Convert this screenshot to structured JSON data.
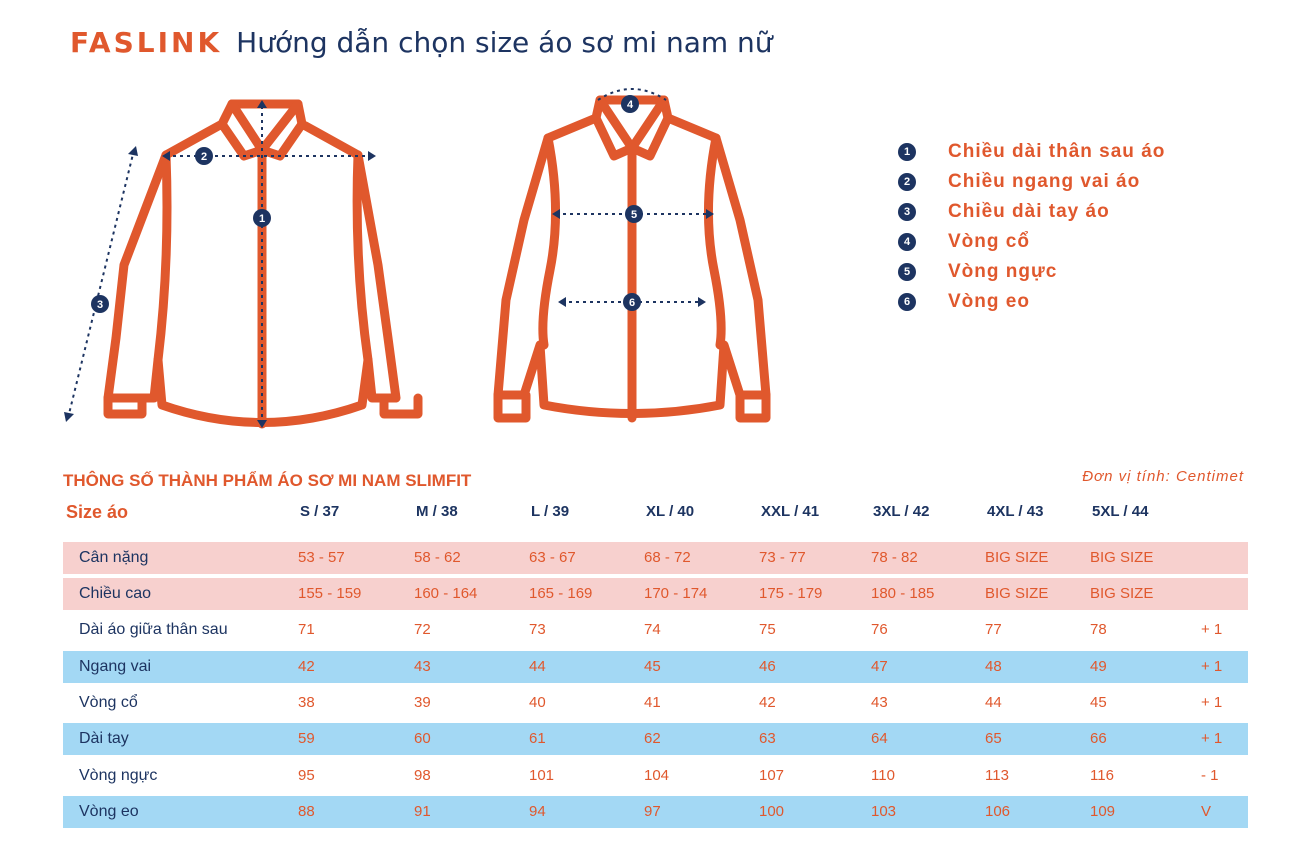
{
  "header": {
    "brand": "FASLINK",
    "title": "Hướng dẫn chọn size áo sơ mi nam nữ"
  },
  "colors": {
    "accent": "#e0582d",
    "navy": "#1d3461",
    "pink_row": "#f7d0ce",
    "blue_row": "#a3d8f4"
  },
  "diagram_markers": [
    "1",
    "2",
    "3",
    "4",
    "5",
    "6"
  ],
  "legend": [
    {
      "num": "1",
      "label": "Chiều dài thân sau áo"
    },
    {
      "num": "2",
      "label": "Chiều ngang vai áo"
    },
    {
      "num": "3",
      "label": "Chiều dài tay áo"
    },
    {
      "num": "4",
      "label": "Vòng cổ"
    },
    {
      "num": "5",
      "label": "Vòng ngực"
    },
    {
      "num": "6",
      "label": "Vòng eo"
    }
  ],
  "table": {
    "title": "THÔNG SỐ THÀNH PHẨM ÁO SƠ MI NAM SLIMFIT",
    "unit": "Đơn vị tính: Centimet",
    "header_label": "Size áo",
    "sizes": [
      "S / 37",
      "M / 38",
      "L / 39",
      "XL / 40",
      "XXL / 41",
      "3XL / 42",
      "4XL / 43",
      "5XL / 44"
    ],
    "rows": [
      {
        "label": "Cân nặng",
        "style": "pink",
        "values": [
          "53 - 57",
          "58 - 62",
          "63 - 67",
          "68 - 72",
          "73 - 77",
          "78 - 82",
          "BIG SIZE",
          "BIG SIZE"
        ],
        "tolerance": ""
      },
      {
        "label": "Chiều cao",
        "style": "pink",
        "values": [
          "155 - 159",
          "160 - 164",
          "165 - 169",
          "170 - 174",
          "175 - 179",
          "180 - 185",
          "BIG SIZE",
          "BIG SIZE"
        ],
        "tolerance": ""
      },
      {
        "label": "Dài áo giữa thân sau",
        "style": "white",
        "values": [
          "71",
          "72",
          "73",
          "74",
          "75",
          "76",
          "77",
          "78"
        ],
        "tolerance": "+ 1"
      },
      {
        "label": "Ngang vai",
        "style": "blue",
        "values": [
          "42",
          "43",
          "44",
          "45",
          "46",
          "47",
          "48",
          "49"
        ],
        "tolerance": "+ 1"
      },
      {
        "label": "Vòng cổ",
        "style": "white",
        "values": [
          "38",
          "39",
          "40",
          "41",
          "42",
          "43",
          "44",
          "45"
        ],
        "tolerance": "+ 1"
      },
      {
        "label": "Dài tay",
        "style": "blue",
        "values": [
          "59",
          "60",
          "61",
          "62",
          "63",
          "64",
          "65",
          "66"
        ],
        "tolerance": "+ 1"
      },
      {
        "label": "Vòng ngực",
        "style": "white",
        "values": [
          "95",
          "98",
          "101",
          "104",
          "107",
          "110",
          "113",
          "116"
        ],
        "tolerance": "- 1"
      },
      {
        "label": "Vòng eo",
        "style": "blue",
        "values": [
          "88",
          "91",
          "94",
          "97",
          "100",
          "103",
          "106",
          "109"
        ],
        "tolerance": "V"
      }
    ]
  }
}
